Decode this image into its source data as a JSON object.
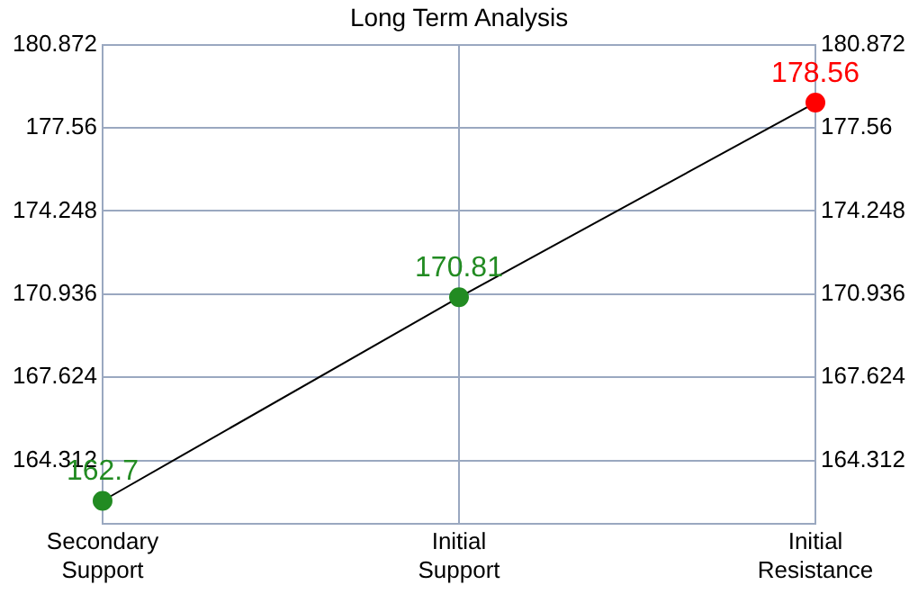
{
  "chart_data": {
    "type": "line",
    "title": "Long Term Analysis",
    "categories": [
      "Secondary Support",
      "Initial Support",
      "Initial Resistance"
    ],
    "values": [
      162.7,
      170.81,
      178.56
    ],
    "color": "#000000",
    "colors": [
      "#228b22",
      "#228b22",
      "#ff0000"
    ],
    "ylim": [
      161.8,
      180.872
    ],
    "yticks": [
      164.312,
      167.624,
      170.936,
      174.248,
      177.56,
      180.872
    ],
    "y2lim": [
      161.8,
      180.872
    ],
    "y2ticks": [
      164.312,
      167.624,
      170.936,
      174.248,
      177.56,
      180.872
    ],
    "grid": true,
    "marker": "circle",
    "data_labels": true,
    "legend": false
  }
}
